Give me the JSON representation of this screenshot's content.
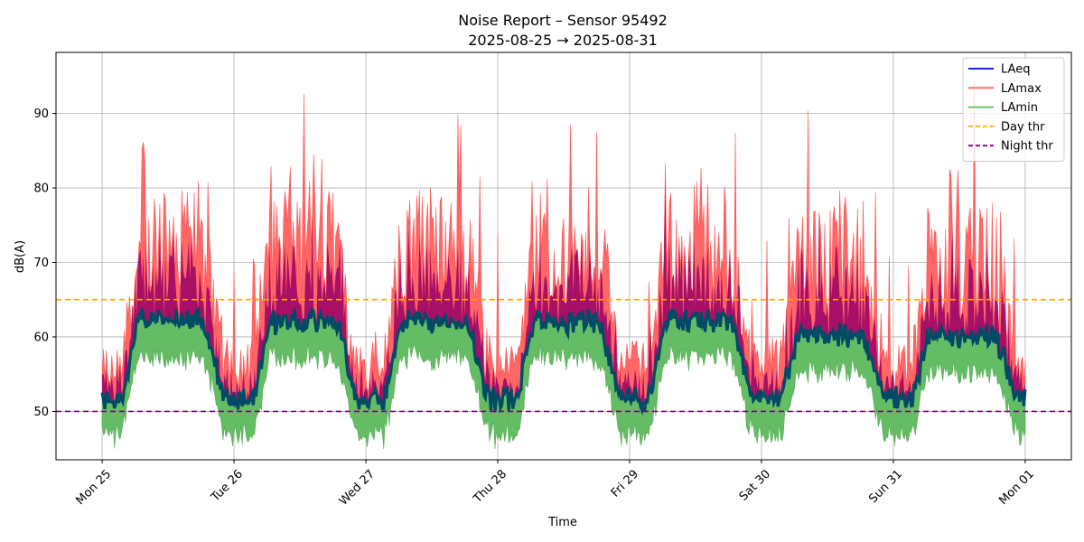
{
  "chart_data": {
    "type": "line",
    "title": "Noise Report – Sensor 95492",
    "subtitle": "2025-08-25 → 2025-08-31",
    "xlabel": "Time",
    "ylabel": "dB(A)",
    "xlim": [
      -0.35,
      7.35
    ],
    "ylim": [
      43.5,
      98.2
    ],
    "yticks": [
      50,
      60,
      70,
      80,
      90
    ],
    "grid": true,
    "legend_position": "top-right",
    "x_ticks": [
      {
        "x": 0,
        "label": "Mon 25"
      },
      {
        "x": 1,
        "label": "Tue 26"
      },
      {
        "x": 2,
        "label": "Wed 27"
      },
      {
        "x": 3,
        "label": "Thu 28"
      },
      {
        "x": 4,
        "label": "Fri 29"
      },
      {
        "x": 5,
        "label": "Sat 30"
      },
      {
        "x": 6,
        "label": "Sun 31"
      },
      {
        "x": 7,
        "label": "Mon 01"
      }
    ],
    "series": [
      {
        "name": "LAeq",
        "color": "#0000ff",
        "style": "solid",
        "x_days": [
          0,
          7
        ],
        "description_note": "hourly, approx 50–52 at night, 59–62 by day"
      },
      {
        "name": "LAmax",
        "color": "#ff6666",
        "style": "solid",
        "x_days": [
          0,
          7
        ]
      },
      {
        "name": "LAmin",
        "color": "#66b266",
        "style": "solid",
        "x_days": [
          0,
          7
        ]
      }
    ],
    "thresholds": [
      {
        "name": "Day thr",
        "value": 65,
        "color": "#ffa500",
        "style": "dashed"
      },
      {
        "name": "Night thr",
        "value": 50,
        "color": "#800080",
        "style": "dashed"
      }
    ],
    "legend": [
      {
        "label": "LAeq",
        "color": "#0000ff",
        "style": "solid"
      },
      {
        "label": "LAmax",
        "color": "#ff6666",
        "style": "solid"
      },
      {
        "label": "LAmin",
        "color": "#5cb85c",
        "style": "solid"
      },
      {
        "label": "Day thr",
        "color": "#ffa500",
        "style": "dashed"
      },
      {
        "label": "Night thr",
        "color": "#800080",
        "style": "dashed"
      }
    ]
  }
}
